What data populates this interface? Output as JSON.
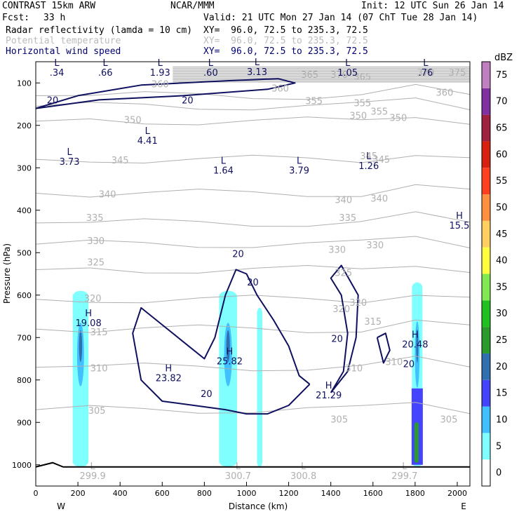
{
  "header": {
    "model": "CONTRAST 15km ARW",
    "org": "NCAR/MMM",
    "init": "Init: 12 UTC Sun 26 Jan 14",
    "fcst_label": "Fcst:",
    "fcst_value": "33 h",
    "valid": "Valid: 21 UTC Mon 27 Jan 14 (07 ChT Tue 28 Jan 14)",
    "fields": [
      {
        "name": "Radar reflectivity (lamda = 10 cm)",
        "xy": "XY=  96.0, 72.5 to 235.3, 72.5",
        "color": "#000000"
      },
      {
        "name": "Potential temperature",
        "xy": "XY=  96.0, 72.5 to 235.3, 72.5",
        "color": "#bbbbbb"
      },
      {
        "name": "Horizontal wind speed",
        "xy": "XY=  96.0, 72.5 to 235.3, 72.5",
        "color": "#000070"
      }
    ]
  },
  "chart_data": {
    "type": "contour",
    "title": "",
    "xlabel": "Distance (km)",
    "ylabel": "Pressure (hPa)",
    "xlim": [
      0,
      2060
    ],
    "ylim": [
      1050,
      50
    ],
    "x_ticks": [
      0,
      200,
      400,
      600,
      800,
      1000,
      1200,
      1400,
      1600,
      1800,
      2000
    ],
    "y_ticks": [
      100,
      200,
      300,
      400,
      500,
      600,
      700,
      800,
      900,
      1000
    ],
    "x_end_labels": {
      "left": "W",
      "right": "E"
    },
    "theta_levels": [
      {
        "value": 305,
        "p_at_0": 870
      },
      {
        "value": 310,
        "p_at_0": 770
      },
      {
        "value": 315,
        "p_at_0": 680
      },
      {
        "value": 320,
        "p_at_0": 610
      },
      {
        "value": 325,
        "p_at_0": 540
      },
      {
        "value": 330,
        "p_at_0": 480
      },
      {
        "value": 335,
        "p_at_0": 430
      },
      {
        "value": 340,
        "p_at_0": 360
      },
      {
        "value": 345,
        "p_at_0": 280
      },
      {
        "value": 350,
        "p_at_0": 190
      },
      {
        "value": 355,
        "p_at_0": 155
      },
      {
        "value": 360,
        "p_at_0": 130
      }
    ],
    "theta_labels": [
      {
        "text": "305",
        "x": 290,
        "p": 880
      },
      {
        "text": "305",
        "x": 1440,
        "p": 900
      },
      {
        "text": "305",
        "x": 1960,
        "p": 900
      },
      {
        "text": "310",
        "x": 300,
        "p": 780
      },
      {
        "text": "310",
        "x": 1510,
        "p": 780
      },
      {
        "text": "310",
        "x": 1700,
        "p": 765
      },
      {
        "text": "315",
        "x": 300,
        "p": 695
      },
      {
        "text": "315",
        "x": 1600,
        "p": 670
      },
      {
        "text": "320",
        "x": 270,
        "p": 615
      },
      {
        "text": "320",
        "x": 1450,
        "p": 640
      },
      {
        "text": "320",
        "x": 1530,
        "p": 625
      },
      {
        "text": "325",
        "x": 285,
        "p": 530
      },
      {
        "text": "325",
        "x": 1460,
        "p": 555
      },
      {
        "text": "330",
        "x": 285,
        "p": 480
      },
      {
        "text": "330",
        "x": 1430,
        "p": 500
      },
      {
        "text": "330",
        "x": 1610,
        "p": 490
      },
      {
        "text": "335",
        "x": 280,
        "p": 425
      },
      {
        "text": "335",
        "x": 1480,
        "p": 425
      },
      {
        "text": "340",
        "x": 340,
        "p": 370
      },
      {
        "text": "340",
        "x": 1460,
        "p": 383
      },
      {
        "text": "340",
        "x": 1630,
        "p": 380
      },
      {
        "text": "345",
        "x": 400,
        "p": 290
      },
      {
        "text": "345",
        "x": 1580,
        "p": 280
      },
      {
        "text": "345",
        "x": 1640,
        "p": 288
      },
      {
        "text": "350",
        "x": 460,
        "p": 195
      },
      {
        "text": "350",
        "x": 1530,
        "p": 185
      },
      {
        "text": "350",
        "x": 1720,
        "p": 190
      },
      {
        "text": "355",
        "x": 1320,
        "p": 150
      },
      {
        "text": "355",
        "x": 1550,
        "p": 155
      },
      {
        "text": "355",
        "x": 1630,
        "p": 175
      },
      {
        "text": "360",
        "x": 590,
        "p": 110
      },
      {
        "text": "360",
        "x": 1160,
        "p": 120
      },
      {
        "text": "360",
        "x": 1940,
        "p": 130
      },
      {
        "text": "365",
        "x": 1300,
        "p": 88
      },
      {
        "text": "365",
        "x": 1550,
        "p": 93
      },
      {
        "text": "370",
        "x": 1440,
        "p": 88
      },
      {
        "text": "370",
        "x": 1850,
        "p": 83
      },
      {
        "text": "375",
        "x": 2000,
        "p": 83
      }
    ],
    "wind_speed_labels": [
      {
        "text": "20",
        "x": 80,
        "p": 148
      },
      {
        "text": "20",
        "x": 720,
        "p": 148
      },
      {
        "text": "20",
        "x": 960,
        "p": 510
      },
      {
        "text": "20",
        "x": 1030,
        "p": 577
      },
      {
        "text": "20",
        "x": 1430,
        "p": 710
      },
      {
        "text": "20",
        "x": 810,
        "p": 840
      },
      {
        "text": "20",
        "x": 1770,
        "p": 770
      }
    ],
    "extrema": [
      {
        "kind": "L",
        "value": ".34",
        "x": 100,
        "p": 70
      },
      {
        "kind": "L",
        "value": ".66",
        "x": 330,
        "p": 70
      },
      {
        "kind": "L",
        "value": "1.93",
        "x": 590,
        "p": 70
      },
      {
        "kind": "L",
        "value": ".60",
        "x": 830,
        "p": 70
      },
      {
        "kind": "L",
        "value": "3.13",
        "x": 1050,
        "p": 68
      },
      {
        "kind": "L",
        "value": "1.05",
        "x": 1480,
        "p": 70
      },
      {
        "kind": "L",
        "value": ".76",
        "x": 1850,
        "p": 70
      },
      {
        "kind": "L",
        "value": "4.41",
        "x": 530,
        "p": 230
      },
      {
        "kind": "L",
        "value": "3.73",
        "x": 160,
        "p": 280
      },
      {
        "kind": "L",
        "value": "1.64",
        "x": 890,
        "p": 300
      },
      {
        "kind": "L",
        "value": "3.79",
        "x": 1250,
        "p": 300
      },
      {
        "kind": "L",
        "value": "1.26",
        "x": 1580,
        "p": 290
      },
      {
        "kind": "H",
        "value": "15.5",
        "x": 2010,
        "p": 430
      },
      {
        "kind": "H",
        "value": "19.08",
        "x": 250,
        "p": 660
      },
      {
        "kind": "H",
        "value": "25.82",
        "x": 920,
        "p": 750
      },
      {
        "kind": "H",
        "value": "23.82",
        "x": 630,
        "p": 790
      },
      {
        "kind": "H",
        "value": "21.29",
        "x": 1390,
        "p": 830
      },
      {
        "kind": "H",
        "value": "20.48",
        "x": 1800,
        "p": 710
      },
      {
        "kind": "L",
        "value": "299.9",
        "x": 270,
        "p": 1020
      },
      {
        "kind": "L",
        "value": "300.7",
        "x": 960,
        "p": 1020
      },
      {
        "kind": "L",
        "value": "300.8",
        "x": 1270,
        "p": 1020
      },
      {
        "kind": "L",
        "value": "299.7",
        "x": 1750,
        "p": 1020
      }
    ],
    "reflectivity_cells": [
      {
        "x": [
          175,
          250
        ],
        "p": [
          590,
          1005
        ],
        "core_dbz": 15
      },
      {
        "x": [
          870,
          955
        ],
        "p": [
          590,
          1005
        ],
        "core_dbz": 15
      },
      {
        "x": [
          1050,
          1075
        ],
        "p": [
          630,
          1005
        ],
        "core_dbz": 5
      },
      {
        "x": [
          1785,
          1835
        ],
        "p": [
          570,
          1005
        ],
        "core_dbz": 25
      }
    ],
    "colorbar": {
      "unit": "dBZ",
      "levels": [
        0,
        5,
        10,
        15,
        20,
        25,
        30,
        35,
        40,
        45,
        50,
        55,
        60,
        65,
        70,
        75
      ],
      "colors": [
        "#ffffff",
        "#80ffff",
        "#40c0ff",
        "#4444ff",
        "#3070b0",
        "#2a9a2a",
        "#20c020",
        "#80e850",
        "#ffff40",
        "#ffd060",
        "#ff9040",
        "#ff4020",
        "#d82010",
        "#a02040",
        "#8030a0",
        "#c080c0"
      ]
    },
    "colors": {
      "theta": "#b0b0b0",
      "wind": "#101060",
      "axis": "#000000"
    }
  }
}
